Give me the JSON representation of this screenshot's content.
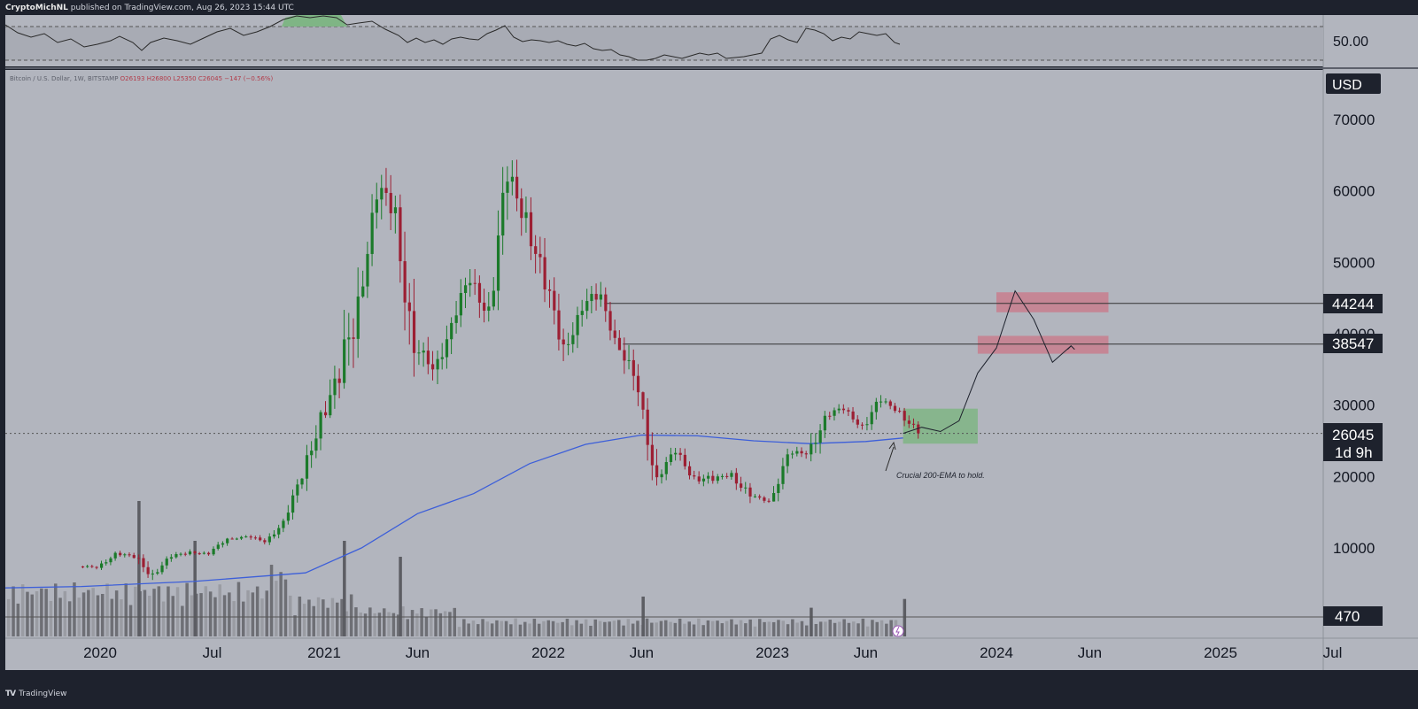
{
  "header": {
    "author": "CryptoMichNL",
    "published": "published on TradingView.com, Aug 26, 2023 15:44 UTC"
  },
  "footer": {
    "brand": "TradingView",
    "logo": "TV"
  },
  "symbol": {
    "name": "Bitcoin / U.S. Dollar, 1W, BITSTAMP",
    "open": "O26193",
    "high": "H26800",
    "low": "L25350",
    "close": "C26045",
    "change": "−147 (−0.56%)"
  },
  "rsi": {
    "level_label": "50.00"
  },
  "currency": "USD",
  "price_axis": [
    "70000",
    "60000",
    "50000",
    "40000",
    "30000",
    "20000",
    "10000"
  ],
  "badges": {
    "upper": "44244",
    "lower": "38547",
    "last": "26045",
    "countdown": "1d 9h",
    "volume": "470"
  },
  "time_axis": [
    "2020",
    "Jul",
    "2021",
    "Jun",
    "2022",
    "Jun",
    "2023",
    "Jun",
    "2024",
    "Jun",
    "2025",
    "Jul"
  ],
  "annotation": "Crucial 200-EMA to hold.",
  "colors": {
    "background": "#b2b5be",
    "up": "#1b7a2a",
    "down": "#9c1f33",
    "ema": "#3d5fd9",
    "resistance_zone": "#c87e8e",
    "support_zone": "#7fb585",
    "badge_bg": "#1e222d"
  },
  "chart_data": {
    "type": "candlestick",
    "title": "Bitcoin / U.S. Dollar, 1W, BITSTAMP",
    "ylabel": "USD",
    "ylim": [
      0,
      75000
    ],
    "candles": [
      {
        "date": "2019-12",
        "o": 7400,
        "h": 7800,
        "l": 6500,
        "c": 7200
      },
      {
        "date": "2020-01",
        "o": 7200,
        "h": 9500,
        "l": 6900,
        "c": 9300
      },
      {
        "date": "2020-02",
        "o": 9300,
        "h": 10500,
        "l": 8500,
        "c": 8600
      },
      {
        "date": "2020-03",
        "o": 8600,
        "h": 9100,
        "l": 3900,
        "c": 6400
      },
      {
        "date": "2020-04",
        "o": 6400,
        "h": 9400,
        "l": 6200,
        "c": 8700
      },
      {
        "date": "2020-05",
        "o": 8700,
        "h": 10000,
        "l": 8100,
        "c": 9500
      },
      {
        "date": "2020-06",
        "o": 9500,
        "h": 10300,
        "l": 8900,
        "c": 9100
      },
      {
        "date": "2020-07",
        "o": 9100,
        "h": 11400,
        "l": 8900,
        "c": 11300
      },
      {
        "date": "2020-08",
        "o": 11300,
        "h": 12400,
        "l": 11100,
        "c": 11600
      },
      {
        "date": "2020-09",
        "o": 11600,
        "h": 12000,
        "l": 9900,
        "c": 10800
      },
      {
        "date": "2020-10",
        "o": 10800,
        "h": 14100,
        "l": 10400,
        "c": 13800
      },
      {
        "date": "2020-11",
        "o": 13800,
        "h": 19800,
        "l": 13200,
        "c": 19700
      },
      {
        "date": "2020-12",
        "o": 19700,
        "h": 29300,
        "l": 17600,
        "c": 29000
      },
      {
        "date": "2021-01",
        "o": 29000,
        "h": 41900,
        "l": 28200,
        "c": 33100
      },
      {
        "date": "2021-02",
        "o": 33100,
        "h": 58300,
        "l": 32300,
        "c": 45200
      },
      {
        "date": "2021-03",
        "o": 45200,
        "h": 61700,
        "l": 45000,
        "c": 58800
      },
      {
        "date": "2021-04",
        "o": 58800,
        "h": 64800,
        "l": 47000,
        "c": 57700
      },
      {
        "date": "2021-05",
        "o": 57700,
        "h": 59500,
        "l": 30000,
        "c": 37300
      },
      {
        "date": "2021-06",
        "o": 37300,
        "h": 41300,
        "l": 28800,
        "c": 35000
      },
      {
        "date": "2021-07",
        "o": 35000,
        "h": 42300,
        "l": 29300,
        "c": 41500
      },
      {
        "date": "2021-08",
        "o": 41500,
        "h": 50500,
        "l": 37300,
        "c": 47100
      },
      {
        "date": "2021-09",
        "o": 47100,
        "h": 52900,
        "l": 39600,
        "c": 43800
      },
      {
        "date": "2021-10",
        "o": 43800,
        "h": 67000,
        "l": 43300,
        "c": 61300
      },
      {
        "date": "2021-11",
        "o": 61300,
        "h": 69000,
        "l": 53300,
        "c": 57000
      },
      {
        "date": "2021-12",
        "o": 57000,
        "h": 59100,
        "l": 42000,
        "c": 46200
      },
      {
        "date": "2022-01",
        "o": 46200,
        "h": 47900,
        "l": 33000,
        "c": 38500
      },
      {
        "date": "2022-02",
        "o": 38500,
        "h": 45800,
        "l": 34300,
        "c": 43200
      },
      {
        "date": "2022-03",
        "o": 43200,
        "h": 48200,
        "l": 37200,
        "c": 45500
      },
      {
        "date": "2022-04",
        "o": 45500,
        "h": 47400,
        "l": 37700,
        "c": 37700
      },
      {
        "date": "2022-05",
        "o": 37700,
        "h": 40000,
        "l": 26700,
        "c": 31800
      },
      {
        "date": "2022-06",
        "o": 31800,
        "h": 31900,
        "l": 17600,
        "c": 19900
      },
      {
        "date": "2022-07",
        "o": 19900,
        "h": 24600,
        "l": 18800,
        "c": 23300
      },
      {
        "date": "2022-08",
        "o": 23300,
        "h": 25200,
        "l": 19600,
        "c": 20000
      },
      {
        "date": "2022-09",
        "o": 20000,
        "h": 22800,
        "l": 18200,
        "c": 19400
      },
      {
        "date": "2022-10",
        "o": 19400,
        "h": 21000,
        "l": 18200,
        "c": 20500
      },
      {
        "date": "2022-11",
        "o": 20500,
        "h": 21400,
        "l": 15500,
        "c": 17200
      },
      {
        "date": "2022-12",
        "o": 17200,
        "h": 18400,
        "l": 16300,
        "c": 16500
      },
      {
        "date": "2023-01",
        "o": 16500,
        "h": 23900,
        "l": 16500,
        "c": 23100
      },
      {
        "date": "2023-02",
        "o": 23100,
        "h": 25200,
        "l": 21400,
        "c": 23100
      },
      {
        "date": "2023-03",
        "o": 23100,
        "h": 29200,
        "l": 19600,
        "c": 28500
      },
      {
        "date": "2023-04",
        "o": 28500,
        "h": 31000,
        "l": 26900,
        "c": 29300
      },
      {
        "date": "2023-05",
        "o": 29300,
        "h": 29800,
        "l": 25800,
        "c": 27200
      },
      {
        "date": "2023-06",
        "o": 27200,
        "h": 31400,
        "l": 24800,
        "c": 30500
      },
      {
        "date": "2023-07",
        "o": 30500,
        "h": 31800,
        "l": 28900,
        "c": 29200
      },
      {
        "date": "2023-08",
        "o": 29200,
        "h": 30200,
        "l": 25300,
        "c": 26045
      }
    ],
    "ema200": [
      {
        "date": "2019-12",
        "v": 4600
      },
      {
        "date": "2020-06",
        "v": 5300
      },
      {
        "date": "2020-12",
        "v": 6500
      },
      {
        "date": "2021-03",
        "v": 10000
      },
      {
        "date": "2021-06",
        "v": 14800
      },
      {
        "date": "2021-09",
        "v": 17600
      },
      {
        "date": "2021-12",
        "v": 21800
      },
      {
        "date": "2022-03",
        "v": 24500
      },
      {
        "date": "2022-06",
        "v": 25800
      },
      {
        "date": "2022-09",
        "v": 25700
      },
      {
        "date": "2022-12",
        "v": 25000
      },
      {
        "date": "2023-03",
        "v": 24600
      },
      {
        "date": "2023-06",
        "v": 24900
      },
      {
        "date": "2023-08",
        "v": 25400
      }
    ],
    "horizontal_levels": [
      44244,
      38547,
      26045
    ],
    "zones": [
      {
        "kind": "resistance",
        "from": "2024-01",
        "to": "2024-07",
        "low": 43000,
        "high": 45800
      },
      {
        "kind": "resistance",
        "from": "2023-12",
        "to": "2024-07",
        "low": 37200,
        "high": 39700
      },
      {
        "kind": "support",
        "from": "2023-08",
        "to": "2023-12",
        "low": 24600,
        "high": 29500
      }
    ],
    "projection": [
      {
        "date": "2023-08",
        "v": 26045
      },
      {
        "date": "2023-09",
        "v": 26900
      },
      {
        "date": "2023-10",
        "v": 26300
      },
      {
        "date": "2023-11",
        "v": 27800
      },
      {
        "date": "2023-12",
        "v": 34500
      },
      {
        "date": "2024-01",
        "v": 38000
      },
      {
        "date": "2024-02",
        "v": 46000
      },
      {
        "date": "2024-03",
        "v": 42000
      },
      {
        "date": "2024-04",
        "v": 36000
      },
      {
        "date": "2024-05",
        "v": 38300
      }
    ],
    "volume": [
      {
        "date": "2020-03",
        "v": 1700
      },
      {
        "date": "2020-06",
        "v": 1200
      },
      {
        "date": "2021-02",
        "v": 1200
      },
      {
        "date": "2021-05",
        "v": 1000
      },
      {
        "date": "2022-06",
        "v": 500
      },
      {
        "date": "2023-03",
        "v": 360
      },
      {
        "date": "2023-08",
        "v": 470
      }
    ]
  }
}
